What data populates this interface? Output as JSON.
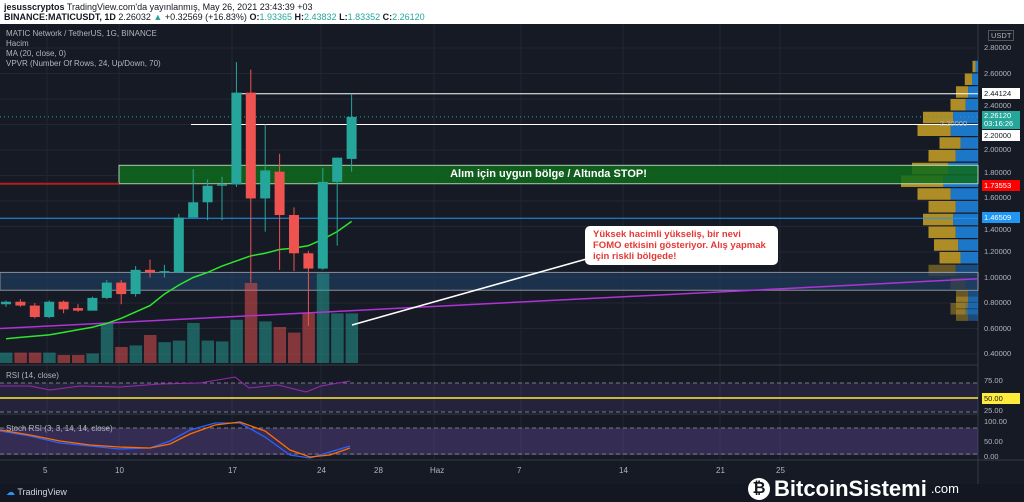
{
  "header": {
    "author": "jesusscryptos",
    "published": "TradingView.com'da yayınlanmış, May 26, 2021 23:43:39 +03",
    "symbol": "BINANCE:MATICUSDT, 1D",
    "last": "2.26032",
    "change": "+0.32569 (+16.83%)",
    "o_label": "O:",
    "o": "1.93365",
    "h_label": "H:",
    "h": "2.43832",
    "l_label": "L:",
    "l": "1.83352",
    "c_label": "C:",
    "c": "2.26120"
  },
  "legend": {
    "title": "MATIC Network / TetherUS, 1G, BINANCE",
    "volume": "Hacim",
    "ma": "MA (20, close, 0)",
    "vpvr": "VPVR (Number Of Rows, 24, Up/Down, 70)",
    "rsi": "RSI (14, close)",
    "stoch": "Stoch RSI (3, 3, 14, 14, close)"
  },
  "annotations": {
    "zone": "Alım için uygun bölge / Altında STOP!",
    "callout": "Yüksek hacimli yükseliş, bir nevi FOMO etkisini gösteriyor. Alış yapmak için riskli bölgede!"
  },
  "price_axis": {
    "currency": "USDT",
    "ticks": [
      "2.80000",
      "2.60000",
      "2.40000",
      "2.20000",
      "2.00000",
      "1.80000",
      "1.60000",
      "1.40000",
      "1.20000",
      "1.00000",
      "0.80000",
      "0.60000",
      "0.40000"
    ],
    "tags": {
      "high": "2.44124",
      "last": "2.26120",
      "countdown": "03:16:26",
      "level": "2.20000",
      "stop": "1.73553",
      "support": "1.46509"
    }
  },
  "rsi_axis": {
    "ticks": [
      "75.00",
      "25.00"
    ],
    "tag": "50.00"
  },
  "stoch_axis": {
    "ticks": [
      "100.00",
      "50.00",
      "0.00"
    ]
  },
  "date_axis": [
    "5",
    "10",
    "17",
    "24",
    "28",
    "Haz",
    "7",
    "14",
    "21",
    "25"
  ],
  "footer": {
    "brand": "TradingView"
  },
  "watermark": {
    "name": "BitcoinSistemi",
    "domain": ".com"
  },
  "colors": {
    "up": "#26a69a",
    "down": "#ef5350",
    "ma": "#2ee62e",
    "zone": "#0f6b1c",
    "trend": "#b033d6"
  },
  "chart_data": {
    "type": "candlestick",
    "dates_start": "2021-05-02",
    "ohlc": [
      [
        0.79,
        0.82,
        0.77,
        0.81
      ],
      [
        0.81,
        0.83,
        0.77,
        0.78
      ],
      [
        0.78,
        0.8,
        0.68,
        0.69
      ],
      [
        0.69,
        0.82,
        0.68,
        0.81
      ],
      [
        0.81,
        0.82,
        0.72,
        0.75
      ],
      [
        0.76,
        0.79,
        0.73,
        0.74
      ],
      [
        0.74,
        0.85,
        0.74,
        0.84
      ],
      [
        0.84,
        0.98,
        0.83,
        0.96
      ],
      [
        0.96,
        0.98,
        0.79,
        0.87
      ],
      [
        0.87,
        1.09,
        0.85,
        1.06
      ],
      [
        1.06,
        1.14,
        1.0,
        1.04
      ],
      [
        1.04,
        1.1,
        1.0,
        1.05
      ],
      [
        1.04,
        1.5,
        1.04,
        1.47
      ],
      [
        1.47,
        1.85,
        1.47,
        1.59
      ],
      [
        1.59,
        1.77,
        1.45,
        1.72
      ],
      [
        1.72,
        1.79,
        1.45,
        1.73
      ],
      [
        1.73,
        2.69,
        1.71,
        2.45
      ],
      [
        2.45,
        2.63,
        0.96,
        1.62
      ],
      [
        1.62,
        2.2,
        1.36,
        1.84
      ],
      [
        1.83,
        1.97,
        1.06,
        1.49
      ],
      [
        1.49,
        1.55,
        1.05,
        1.19
      ],
      [
        1.19,
        1.21,
        0.62,
        1.07
      ],
      [
        1.07,
        1.86,
        1.06,
        1.75
      ],
      [
        1.75,
        1.94,
        1.25,
        1.94
      ],
      [
        1.93,
        2.44,
        1.83,
        2.26
      ]
    ],
    "volume_relative": [
      13,
      13,
      13,
      13,
      10,
      10,
      12,
      50,
      20,
      22,
      35,
      26,
      28,
      50,
      28,
      27,
      54,
      100,
      52,
      45,
      38,
      62,
      112,
      62,
      62
    ],
    "ma20": [
      0.52,
      0.53,
      0.54,
      0.55,
      0.57,
      0.59,
      0.61,
      0.64,
      0.68,
      0.73,
      0.78,
      0.87,
      0.94,
      1.0,
      1.04,
      1.09,
      1.13,
      1.17,
      1.19,
      1.22,
      1.23,
      1.25,
      1.3,
      1.36,
      1.44
    ],
    "levels": {
      "high": 2.44124,
      "level": 2.2,
      "zone": [
        1.73553,
        1.88
      ],
      "support": 1.46509,
      "range": [
        0.9,
        1.04
      ]
    },
    "trendline": [
      0.6,
      0.99
    ],
    "vpvr": [
      [
        0.7,
        0.2
      ],
      [
        0.75,
        0.25
      ],
      [
        0.8,
        0.2
      ],
      [
        0.85,
        0.2
      ],
      [
        0.95,
        0.25
      ],
      [
        1.05,
        0.45
      ],
      [
        1.15,
        0.35
      ],
      [
        1.25,
        0.4
      ],
      [
        1.35,
        0.45
      ],
      [
        1.45,
        0.5
      ],
      [
        1.55,
        0.45
      ],
      [
        1.65,
        0.55
      ],
      [
        1.75,
        0.7
      ],
      [
        1.85,
        0.6
      ],
      [
        1.95,
        0.45
      ],
      [
        2.05,
        0.35
      ],
      [
        2.15,
        0.55
      ],
      [
        2.25,
        0.5
      ],
      [
        2.35,
        0.25
      ],
      [
        2.45,
        0.2
      ],
      [
        2.55,
        0.12
      ],
      [
        2.65,
        0.05
      ]
    ],
    "rsi": {
      "range": [
        0,
        100
      ]
    },
    "stoch": {
      "range": [
        0,
        100
      ]
    }
  }
}
